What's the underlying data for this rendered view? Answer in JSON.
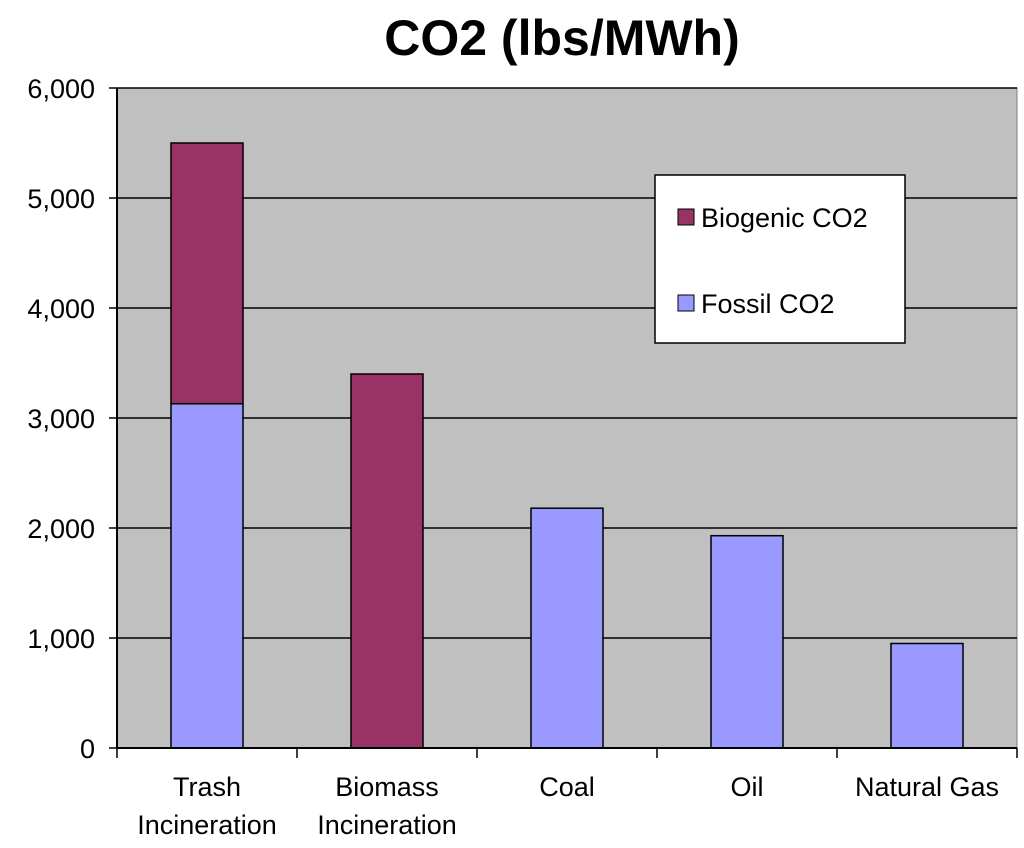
{
  "chart_data": {
    "type": "bar",
    "stacked": true,
    "title": "CO2 (lbs/MWh)",
    "xlabel": "",
    "ylabel": "",
    "ylim": [
      0,
      6000
    ],
    "yticks": [
      0,
      1000,
      2000,
      3000,
      4000,
      5000,
      6000
    ],
    "ytick_labels": [
      "0",
      "1,000",
      "2,000",
      "3,000",
      "4,000",
      "5,000",
      "6,000"
    ],
    "grid": true,
    "categories": [
      [
        "Trash",
        "Incineration"
      ],
      [
        "Biomass",
        "Incineration"
      ],
      [
        "Coal"
      ],
      [
        "Oil"
      ],
      [
        "Natural Gas"
      ]
    ],
    "series": [
      {
        "name": "Fossil CO2",
        "color": "#9999FF",
        "values": [
          3130,
          0,
          2180,
          1930,
          950
        ]
      },
      {
        "name": "Biogenic CO2",
        "color": "#993366",
        "values": [
          2370,
          3400,
          0,
          0,
          0
        ]
      }
    ],
    "legend": {
      "position": "top-right",
      "entries": [
        "Biogenic CO2",
        "Fossil CO2"
      ]
    },
    "colors": {
      "plot_background": "#C0C0C0",
      "gridline": "#000000"
    }
  }
}
